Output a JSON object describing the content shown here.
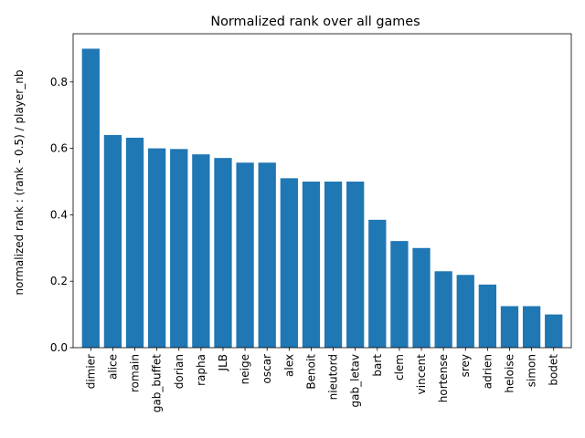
{
  "chart_data": {
    "type": "bar",
    "title": "Normalized rank over all games",
    "xlabel": "",
    "ylabel": "normalized rank : (rank - 0.5) / player_nb",
    "categories": [
      "dimier",
      "alice",
      "romain",
      "gab_buffet",
      "dorian",
      "rapha",
      "JLB",
      "neige",
      "oscar",
      "alex",
      "Benoit",
      "nieutord",
      "gab_letav",
      "bart",
      "clem",
      "vincent",
      "hortense",
      "srey",
      "adrien",
      "heloise",
      "simon",
      "bodet"
    ],
    "values": [
      0.9,
      0.64,
      0.632,
      0.6,
      0.598,
      0.582,
      0.571,
      0.557,
      0.557,
      0.51,
      0.5,
      0.5,
      0.5,
      0.385,
      0.321,
      0.3,
      0.23,
      0.219,
      0.19,
      0.125,
      0.125,
      0.1
    ],
    "ylim": [
      0,
      0.945
    ],
    "yticks": [
      "0.0",
      "0.2",
      "0.4",
      "0.6",
      "0.8"
    ],
    "bar_color": "#1f77b4",
    "grid": false,
    "legend": "none"
  }
}
